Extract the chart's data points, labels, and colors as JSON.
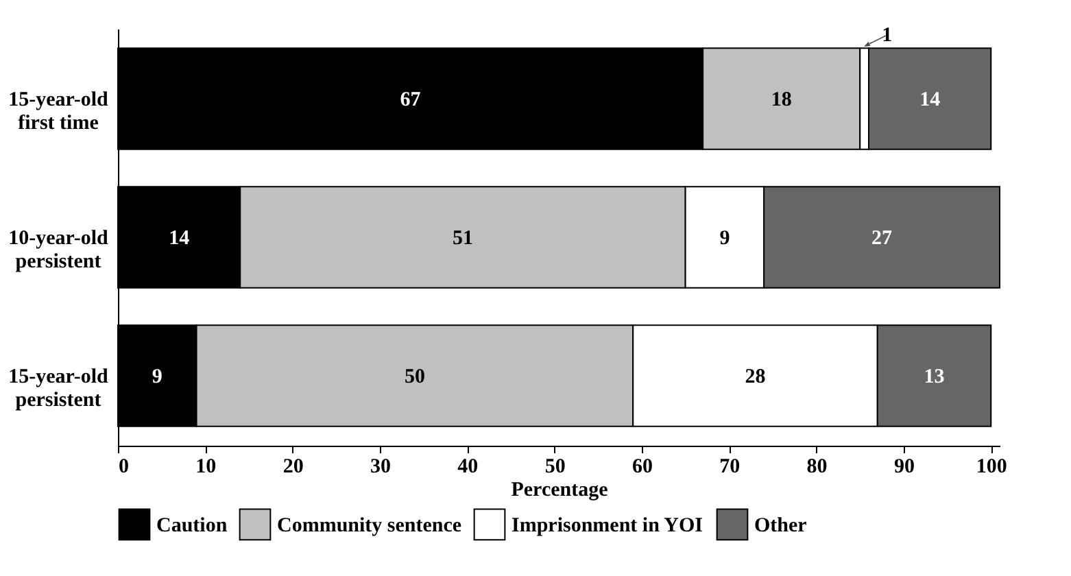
{
  "chart_data": {
    "type": "bar",
    "orientation": "horizontal",
    "stacked": true,
    "categories": [
      "15-year-old first time",
      "10-year-old persistent",
      "15-year-old persistent"
    ],
    "series": [
      {
        "name": "Caution",
        "color": "#000000",
        "values": [
          67,
          14,
          9
        ]
      },
      {
        "name": "Community sentence",
        "color": "#c0c0c0",
        "values": [
          18,
          51,
          50
        ]
      },
      {
        "name": "Imprisonment in YOI",
        "color": "#ffffff",
        "values": [
          1,
          9,
          28
        ]
      },
      {
        "name": "Other",
        "color": "#666666",
        "values": [
          14,
          27,
          13
        ]
      }
    ],
    "xlabel": "Percentage",
    "xlim": [
      0,
      101
    ],
    "xticks": [
      0,
      10,
      20,
      30,
      40,
      50,
      60,
      70,
      80,
      90,
      100
    ],
    "data_labels": true,
    "legend": "bottom",
    "grid": false
  }
}
